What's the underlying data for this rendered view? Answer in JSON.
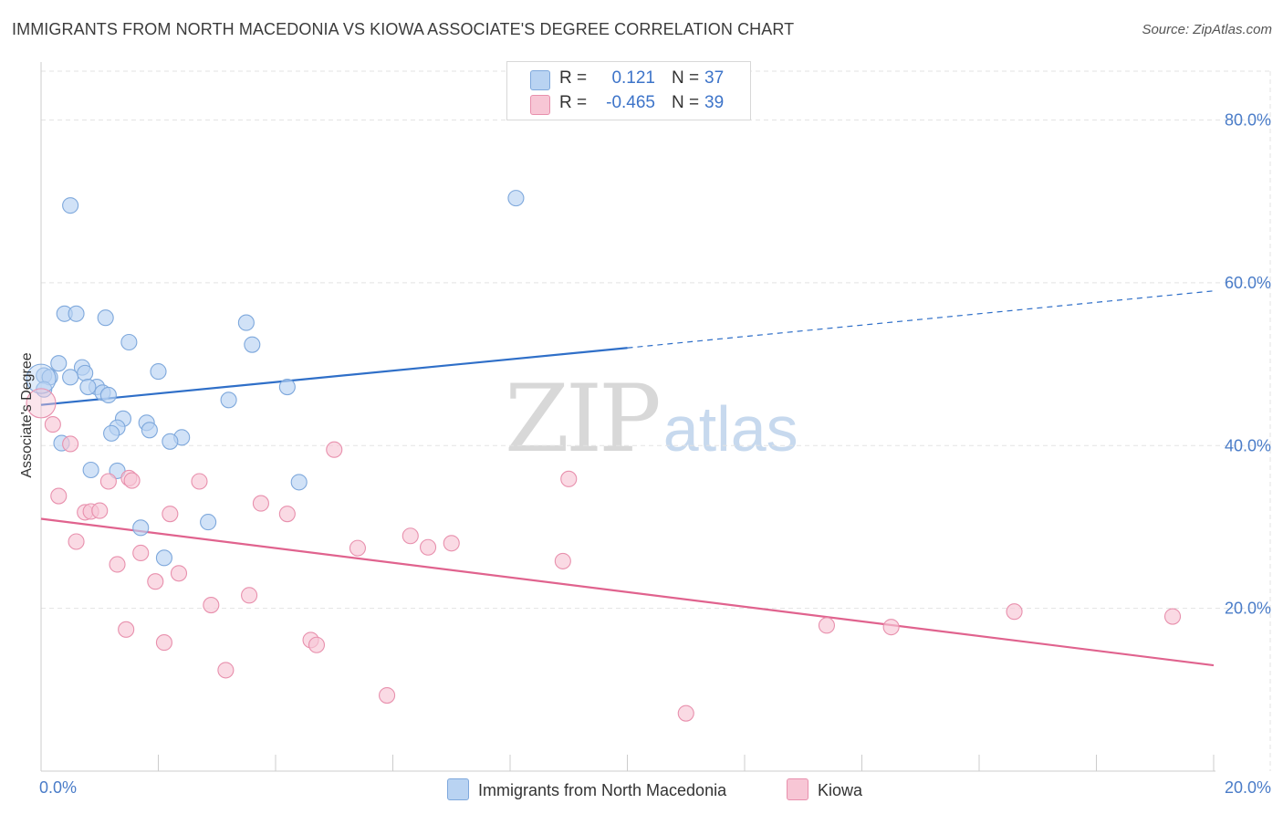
{
  "title": "IMMIGRANTS FROM NORTH MACEDONIA VS KIOWA ASSOCIATE'S DEGREE CORRELATION CHART",
  "source": "Source: ZipAtlas.com",
  "watermark": {
    "zip": "ZIP",
    "atlas": "atlas"
  },
  "legend": {
    "r_label": "R =",
    "n_label": "N =",
    "rows": [
      {
        "r": "0.121",
        "n": "37"
      },
      {
        "r": "-0.465",
        "n": "39"
      }
    ]
  },
  "colors": {
    "blue_fill": "#b9d3f2",
    "blue_stroke": "#7ea8dc",
    "blue_line": "#2f6fc8",
    "pink_fill": "#f7c6d5",
    "pink_stroke": "#e890ad",
    "pink_line": "#e0638e",
    "grid": "#e3e3e3",
    "axis": "#cccccc",
    "tick_text": "#4a7cc8"
  },
  "chart_data": {
    "type": "scatter",
    "title": "IMMIGRANTS FROM NORTH MACEDONIA VS KIOWA ASSOCIATE'S DEGREE CORRELATION CHART",
    "xlabel": "",
    "ylabel": "Associate's Degree",
    "xlim": [
      0,
      20
    ],
    "ylim": [
      0,
      86
    ],
    "x_tick_labels": [
      "0.0%",
      "20.0%"
    ],
    "y_ticks": [
      20,
      40,
      60,
      80
    ],
    "y_tick_labels": [
      "20.0%",
      "40.0%",
      "60.0%",
      "80.0%"
    ],
    "legend_position": "bottom",
    "series": [
      {
        "name": "Immigrants from North Macedonia",
        "color": "blue",
        "R": 0.121,
        "N": 37,
        "points": [
          [
            0.5,
            69.5
          ],
          [
            8.1,
            70.4
          ],
          [
            0.4,
            56.2
          ],
          [
            0.6,
            56.2
          ],
          [
            1.1,
            55.7
          ],
          [
            3.5,
            55.1
          ],
          [
            1.5,
            52.7
          ],
          [
            3.6,
            52.4
          ],
          [
            0.3,
            50.1
          ],
          [
            0.7,
            49.6
          ],
          [
            2.0,
            49.1
          ],
          [
            0.05,
            48.6
          ],
          [
            0.15,
            48.4
          ],
          [
            0.5,
            48.4
          ],
          [
            0.75,
            48.9
          ],
          [
            0.95,
            47.2
          ],
          [
            0.8,
            47.2
          ],
          [
            1.05,
            46.5
          ],
          [
            1.15,
            46.2
          ],
          [
            4.2,
            47.2
          ],
          [
            3.2,
            45.6
          ],
          [
            0.05,
            46.9
          ],
          [
            1.4,
            43.3
          ],
          [
            1.8,
            42.8
          ],
          [
            1.3,
            42.2
          ],
          [
            1.85,
            41.9
          ],
          [
            1.2,
            41.5
          ],
          [
            2.4,
            41.0
          ],
          [
            2.2,
            40.5
          ],
          [
            0.35,
            40.3
          ],
          [
            0.85,
            37.0
          ],
          [
            1.3,
            36.9
          ],
          [
            4.4,
            35.5
          ],
          [
            2.85,
            30.6
          ],
          [
            1.7,
            29.9
          ],
          [
            2.1,
            26.2
          ],
          [
            0.0,
            48.2
          ]
        ]
      },
      {
        "name": "Kiowa",
        "color": "pink",
        "R": -0.465,
        "N": 39,
        "points": [
          [
            0.0,
            45.2
          ],
          [
            0.2,
            42.6
          ],
          [
            0.5,
            40.2
          ],
          [
            5.0,
            39.5
          ],
          [
            1.5,
            36.0
          ],
          [
            1.55,
            35.7
          ],
          [
            2.7,
            35.6
          ],
          [
            9.0,
            35.9
          ],
          [
            1.15,
            35.6
          ],
          [
            0.3,
            33.8
          ],
          [
            3.75,
            32.9
          ],
          [
            0.75,
            31.8
          ],
          [
            0.85,
            31.9
          ],
          [
            1.0,
            32.0
          ],
          [
            2.2,
            31.6
          ],
          [
            4.2,
            31.6
          ],
          [
            6.3,
            28.9
          ],
          [
            0.6,
            28.2
          ],
          [
            7.0,
            28.0
          ],
          [
            6.6,
            27.5
          ],
          [
            5.4,
            27.4
          ],
          [
            1.7,
            26.8
          ],
          [
            8.9,
            25.8
          ],
          [
            1.3,
            25.4
          ],
          [
            2.35,
            24.3
          ],
          [
            1.95,
            23.3
          ],
          [
            3.55,
            21.6
          ],
          [
            2.9,
            20.4
          ],
          [
            16.6,
            19.6
          ],
          [
            19.3,
            19.0
          ],
          [
            13.4,
            17.9
          ],
          [
            14.5,
            17.7
          ],
          [
            1.45,
            17.4
          ],
          [
            4.6,
            16.1
          ],
          [
            2.1,
            15.8
          ],
          [
            4.7,
            15.5
          ],
          [
            3.15,
            12.4
          ],
          [
            5.9,
            9.3
          ],
          [
            11.0,
            7.1
          ]
        ]
      }
    ],
    "trend_lines": [
      {
        "series": "Immigrants from North Macedonia",
        "x0": 0,
        "y0": 45.0,
        "x1": 10,
        "y1": 52.0,
        "dashed_to_x": 20,
        "dashed_to_y": 59.0
      },
      {
        "series": "Kiowa",
        "x0": 0,
        "y0": 31.0,
        "x1": 20,
        "y1": 13.0
      }
    ]
  }
}
